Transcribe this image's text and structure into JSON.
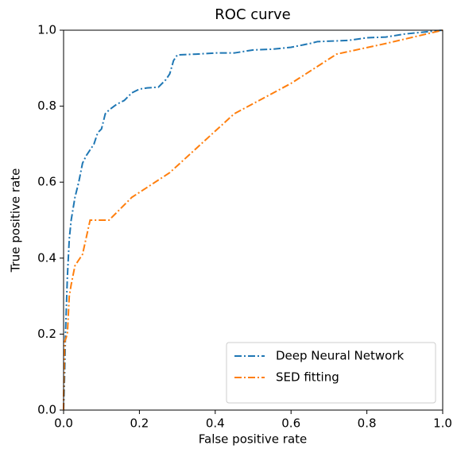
{
  "chart_data": {
    "type": "line",
    "title": "ROC curve",
    "x_label": "False positive rate",
    "y_label": "True positive rate",
    "xlim": [
      0,
      1
    ],
    "ylim": [
      0,
      1
    ],
    "xticks": [
      {
        "value": 0,
        "label": "0.0"
      },
      0.2,
      0.4,
      0.6,
      0.8,
      {
        "value": 1,
        "label": "1.0"
      }
    ],
    "yticks": [
      {
        "value": 0,
        "label": "0.0"
      },
      0.2,
      0.4,
      0.6,
      0.8,
      {
        "value": 1,
        "label": "1.0"
      }
    ],
    "grid": false,
    "legend": "lower right",
    "series": [
      {
        "name": "Deep Neural Network",
        "color": "#1f77b4",
        "linestyle": "dashdot",
        "x": [
          0,
          0.003,
          0.005,
          0.01,
          0.015,
          0.02,
          0.03,
          0.04,
          0.05,
          0.06,
          0.08,
          0.09,
          0.1,
          0.11,
          0.12,
          0.14,
          0.16,
          0.18,
          0.2,
          0.22,
          0.25,
          0.27,
          0.28,
          0.29,
          0.3,
          0.35,
          0.4,
          0.45,
          0.5,
          0.55,
          0.6,
          0.65,
          0.67,
          0.75,
          0.8,
          0.85,
          0.9,
          0.95,
          1
        ],
        "values": [
          0,
          0.1,
          0.2,
          0.35,
          0.45,
          0.5,
          0.56,
          0.6,
          0.65,
          0.67,
          0.7,
          0.73,
          0.74,
          0.78,
          0.79,
          0.805,
          0.815,
          0.835,
          0.845,
          0.848,
          0.85,
          0.87,
          0.885,
          0.92,
          0.935,
          0.937,
          0.94,
          0.94,
          0.948,
          0.95,
          0.955,
          0.965,
          0.97,
          0.973,
          0.98,
          0.982,
          0.99,
          0.995,
          1
        ]
      },
      {
        "name": "SED fitting",
        "color": "#ff7f0e",
        "linestyle": "dashdot",
        "x": [
          0,
          0,
          0.003,
          0.01,
          0.015,
          0.02,
          0.03,
          0.05,
          0.07,
          0.12,
          0.18,
          0.28,
          0.45,
          0.6,
          0.72,
          0.85,
          1
        ],
        "values": [
          0,
          0.03,
          0.18,
          0.2,
          0.3,
          0.33,
          0.38,
          0.41,
          0.5,
          0.5,
          0.56,
          0.625,
          0.78,
          0.86,
          0.937,
          0.965,
          1
        ]
      }
    ]
  }
}
